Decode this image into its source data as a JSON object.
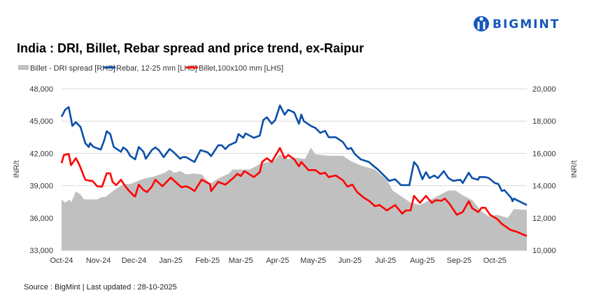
{
  "logo": {
    "text": "BIGMINT",
    "color": "#1557b8"
  },
  "source": "Source : BigMint | Last updated : 28-10-2025",
  "chart_data": {
    "type": "line",
    "title": "India : DRI, Billet, Rebar spread and price trend, ex-Raipur",
    "ylabel_left": "INR/t",
    "ylabel_right": "INR/t",
    "ylim_left": [
      33000,
      48000
    ],
    "ylim_right": [
      10000,
      20000
    ],
    "yticks_left": [
      "33,000",
      "36,000",
      "39,000",
      "42,000",
      "45,000",
      "48,000"
    ],
    "yticks_right": [
      "10,000",
      "12,000",
      "14,000",
      "16,000",
      "18,000",
      "20,000"
    ],
    "xlim": [
      "2024-10-01",
      "2025-10-28"
    ],
    "xticks": [
      "Oct-24",
      "Nov-24",
      "Dec-24",
      "Jan-25",
      "Feb-25",
      "Mar-25",
      "Apr-25",
      "May-25",
      "Jun-25",
      "Jul-25",
      "Aug-25",
      "Sep-25",
      "Oct-25"
    ],
    "grid": "horizontal",
    "legend_position": "top",
    "series": [
      {
        "name": "Billet - DRI spread  [RHS]",
        "type": "area",
        "axis": "right",
        "color": "#c0c0c0",
        "points": [
          [
            "2024-10-01",
            13150
          ],
          [
            "2024-10-04",
            12950
          ],
          [
            "2024-10-08",
            13150
          ],
          [
            "2024-10-09",
            12950
          ],
          [
            "2024-10-13",
            13650
          ],
          [
            "2024-10-17",
            13450
          ],
          [
            "2024-10-20",
            13150
          ],
          [
            "2024-10-31",
            13150
          ],
          [
            "2024-11-04",
            13300
          ],
          [
            "2024-11-07",
            13300
          ],
          [
            "2024-11-14",
            13700
          ],
          [
            "2024-11-22",
            14100
          ],
          [
            "2024-11-28",
            14100
          ],
          [
            "2024-12-06",
            14350
          ],
          [
            "2024-12-10",
            14450
          ],
          [
            "2024-12-17",
            14550
          ],
          [
            "2024-12-27",
            14800
          ],
          [
            "2024-12-31",
            15000
          ],
          [
            "2025-01-04",
            14800
          ],
          [
            "2025-01-09",
            14900
          ],
          [
            "2025-01-14",
            14700
          ],
          [
            "2025-01-21",
            14750
          ],
          [
            "2025-01-27",
            14700
          ],
          [
            "2025-02-03",
            14100
          ],
          [
            "2025-02-10",
            14450
          ],
          [
            "2025-02-19",
            14750
          ],
          [
            "2025-02-22",
            15000
          ],
          [
            "2025-03-02",
            15000
          ],
          [
            "2025-03-08",
            15000
          ],
          [
            "2025-03-14",
            15200
          ],
          [
            "2025-03-17",
            15350
          ],
          [
            "2025-03-23",
            15450
          ],
          [
            "2025-03-29",
            15550
          ],
          [
            "2025-04-03",
            15950
          ],
          [
            "2025-04-10",
            15650
          ],
          [
            "2025-04-15",
            15750
          ],
          [
            "2025-04-24",
            15650
          ],
          [
            "2025-04-29",
            16350
          ],
          [
            "2025-05-03",
            15950
          ],
          [
            "2025-05-14",
            15850
          ],
          [
            "2025-05-26",
            15850
          ],
          [
            "2025-06-01",
            15550
          ],
          [
            "2025-06-10",
            15250
          ],
          [
            "2025-06-22",
            15000
          ],
          [
            "2025-07-02",
            14350
          ],
          [
            "2025-07-07",
            13700
          ],
          [
            "2025-07-16",
            13250
          ],
          [
            "2025-07-22",
            12950
          ],
          [
            "2025-07-30",
            12800
          ],
          [
            "2025-08-11",
            13250
          ],
          [
            "2025-08-23",
            13700
          ],
          [
            "2025-08-29",
            13700
          ],
          [
            "2025-09-04",
            13400
          ],
          [
            "2025-09-12",
            13100
          ],
          [
            "2025-09-20",
            12400
          ],
          [
            "2025-09-26",
            12100
          ],
          [
            "2025-10-03",
            12200
          ],
          [
            "2025-10-12",
            12000
          ],
          [
            "2025-10-17",
            12550
          ],
          [
            "2025-10-28",
            12500
          ]
        ]
      },
      {
        "name": "Rebar, 12-25 mm [LHS]",
        "type": "line",
        "axis": "left",
        "color": "#0a4fa8",
        "points": [
          [
            "2024-10-01",
            45400
          ],
          [
            "2024-10-04",
            46050
          ],
          [
            "2024-10-07",
            46300
          ],
          [
            "2024-10-09",
            45200
          ],
          [
            "2024-10-10",
            44550
          ],
          [
            "2024-10-13",
            44900
          ],
          [
            "2024-10-17",
            44450
          ],
          [
            "2024-10-21",
            42950
          ],
          [
            "2024-10-24",
            42600
          ],
          [
            "2024-10-25",
            42950
          ],
          [
            "2024-10-28",
            42600
          ],
          [
            "2024-11-03",
            42350
          ],
          [
            "2024-11-06",
            43250
          ],
          [
            "2024-11-08",
            44050
          ],
          [
            "2024-11-11",
            43800
          ],
          [
            "2024-11-14",
            42600
          ],
          [
            "2024-11-20",
            42150
          ],
          [
            "2024-11-22",
            42550
          ],
          [
            "2024-11-25",
            42300
          ],
          [
            "2024-11-28",
            41750
          ],
          [
            "2024-12-02",
            41450
          ],
          [
            "2024-12-05",
            42600
          ],
          [
            "2024-12-09",
            42150
          ],
          [
            "2024-12-11",
            41500
          ],
          [
            "2024-12-16",
            42300
          ],
          [
            "2024-12-19",
            42550
          ],
          [
            "2024-12-22",
            42300
          ],
          [
            "2024-12-26",
            41650
          ],
          [
            "2024-12-31",
            42400
          ],
          [
            "2025-01-03",
            42150
          ],
          [
            "2025-01-09",
            41500
          ],
          [
            "2025-01-11",
            41650
          ],
          [
            "2025-01-14",
            41650
          ],
          [
            "2025-01-17",
            41450
          ],
          [
            "2025-01-21",
            41200
          ],
          [
            "2025-01-26",
            42300
          ],
          [
            "2025-02-01",
            42100
          ],
          [
            "2025-02-04",
            41750
          ],
          [
            "2025-02-10",
            42750
          ],
          [
            "2025-02-13",
            42750
          ],
          [
            "2025-02-16",
            42400
          ],
          [
            "2025-02-19",
            42750
          ],
          [
            "2025-02-25",
            43050
          ],
          [
            "2025-02-27",
            43800
          ],
          [
            "2025-03-03",
            43450
          ],
          [
            "2025-03-05",
            43850
          ],
          [
            "2025-03-12",
            43450
          ],
          [
            "2025-03-17",
            43650
          ],
          [
            "2025-03-20",
            45100
          ],
          [
            "2025-03-23",
            45350
          ],
          [
            "2025-03-27",
            44750
          ],
          [
            "2025-03-30",
            45100
          ],
          [
            "2025-04-03",
            46450
          ],
          [
            "2025-04-07",
            45600
          ],
          [
            "2025-04-10",
            46050
          ],
          [
            "2025-04-15",
            45800
          ],
          [
            "2025-04-19",
            44750
          ],
          [
            "2025-04-21",
            45600
          ],
          [
            "2025-04-23",
            45000
          ],
          [
            "2025-04-29",
            44550
          ],
          [
            "2025-05-03",
            44350
          ],
          [
            "2025-05-07",
            43900
          ],
          [
            "2025-05-11",
            44100
          ],
          [
            "2025-05-14",
            43500
          ],
          [
            "2025-05-20",
            43500
          ],
          [
            "2025-05-26",
            43050
          ],
          [
            "2025-05-30",
            42400
          ],
          [
            "2025-06-02",
            42500
          ],
          [
            "2025-06-05",
            41950
          ],
          [
            "2025-06-10",
            41450
          ],
          [
            "2025-06-17",
            41200
          ],
          [
            "2025-06-20",
            40900
          ],
          [
            "2025-06-24",
            40550
          ],
          [
            "2025-07-01",
            39800
          ],
          [
            "2025-07-04",
            39450
          ],
          [
            "2025-07-09",
            39600
          ],
          [
            "2025-07-14",
            39050
          ],
          [
            "2025-07-21",
            39050
          ],
          [
            "2025-07-25",
            41200
          ],
          [
            "2025-07-28",
            40800
          ],
          [
            "2025-08-01",
            39600
          ],
          [
            "2025-08-04",
            40250
          ],
          [
            "2025-08-07",
            39700
          ],
          [
            "2025-08-11",
            39950
          ],
          [
            "2025-08-14",
            39700
          ],
          [
            "2025-08-19",
            40350
          ],
          [
            "2025-08-23",
            39700
          ],
          [
            "2025-08-27",
            39450
          ],
          [
            "2025-09-02",
            39550
          ],
          [
            "2025-09-04",
            39250
          ],
          [
            "2025-09-09",
            40200
          ],
          [
            "2025-09-12",
            39700
          ],
          [
            "2025-09-17",
            39550
          ],
          [
            "2025-09-18",
            39800
          ],
          [
            "2025-09-23",
            39800
          ],
          [
            "2025-09-26",
            39700
          ],
          [
            "2025-10-01",
            39250
          ],
          [
            "2025-10-04",
            39150
          ],
          [
            "2025-10-07",
            38500
          ],
          [
            "2025-10-09",
            38600
          ],
          [
            "2025-10-15",
            37850
          ],
          [
            "2025-10-16",
            37550
          ],
          [
            "2025-10-17",
            37800
          ],
          [
            "2025-10-28",
            37200
          ]
        ]
      },
      {
        "name": "Billet,100x100 mm [LHS]",
        "type": "line",
        "axis": "left",
        "color": "#ff0000",
        "points": [
          [
            "2024-10-01",
            41100
          ],
          [
            "2024-10-03",
            41850
          ],
          [
            "2024-10-07",
            41950
          ],
          [
            "2024-10-09",
            40900
          ],
          [
            "2024-10-13",
            41550
          ],
          [
            "2024-10-16",
            40950
          ],
          [
            "2024-10-21",
            39550
          ],
          [
            "2024-10-25",
            39450
          ],
          [
            "2024-10-27",
            39450
          ],
          [
            "2024-10-31",
            38950
          ],
          [
            "2024-11-04",
            38900
          ],
          [
            "2024-11-06",
            39500
          ],
          [
            "2024-11-08",
            40150
          ],
          [
            "2024-11-11",
            40150
          ],
          [
            "2024-11-13",
            39350
          ],
          [
            "2024-11-16",
            39050
          ],
          [
            "2024-11-20",
            39550
          ],
          [
            "2024-11-24",
            38900
          ],
          [
            "2024-11-27",
            38500
          ],
          [
            "2024-12-01",
            38050
          ],
          [
            "2024-12-02",
            38000
          ],
          [
            "2024-12-05",
            39100
          ],
          [
            "2024-12-09",
            38600
          ],
          [
            "2024-12-12",
            38400
          ],
          [
            "2024-12-16",
            38900
          ],
          [
            "2024-12-19",
            39550
          ],
          [
            "2024-12-25",
            38950
          ],
          [
            "2025-01-01",
            39750
          ],
          [
            "2025-01-06",
            39250
          ],
          [
            "2025-01-10",
            38850
          ],
          [
            "2025-01-14",
            38950
          ],
          [
            "2025-01-17",
            38800
          ],
          [
            "2025-01-21",
            38500
          ],
          [
            "2025-01-27",
            39550
          ],
          [
            "2025-02-03",
            39150
          ],
          [
            "2025-02-04",
            38500
          ],
          [
            "2025-02-10",
            39350
          ],
          [
            "2025-02-16",
            39100
          ],
          [
            "2025-02-23",
            39750
          ],
          [
            "2025-02-26",
            40100
          ],
          [
            "2025-03-01",
            39900
          ],
          [
            "2025-03-04",
            40350
          ],
          [
            "2025-03-07",
            40150
          ],
          [
            "2025-03-12",
            39800
          ],
          [
            "2025-03-17",
            40250
          ],
          [
            "2025-03-19",
            41200
          ],
          [
            "2025-03-23",
            41550
          ],
          [
            "2025-03-27",
            41200
          ],
          [
            "2025-04-03",
            42500
          ],
          [
            "2025-04-07",
            41550
          ],
          [
            "2025-04-10",
            41850
          ],
          [
            "2025-04-15",
            41450
          ],
          [
            "2025-04-19",
            40800
          ],
          [
            "2025-04-21",
            41200
          ],
          [
            "2025-04-27",
            40450
          ],
          [
            "2025-05-03",
            40450
          ],
          [
            "2025-05-07",
            40100
          ],
          [
            "2025-05-11",
            40200
          ],
          [
            "2025-05-14",
            39800
          ],
          [
            "2025-05-20",
            39950
          ],
          [
            "2025-05-26",
            39500
          ],
          [
            "2025-05-30",
            38900
          ],
          [
            "2025-06-03",
            39100
          ],
          [
            "2025-06-07",
            38400
          ],
          [
            "2025-06-13",
            37850
          ],
          [
            "2025-06-17",
            37600
          ],
          [
            "2025-06-22",
            37100
          ],
          [
            "2025-06-26",
            37200
          ],
          [
            "2025-07-02",
            36700
          ],
          [
            "2025-07-09",
            37200
          ],
          [
            "2025-07-15",
            36400
          ],
          [
            "2025-07-18",
            36700
          ],
          [
            "2025-07-22",
            36700
          ],
          [
            "2025-07-25",
            38050
          ],
          [
            "2025-07-30",
            37400
          ],
          [
            "2025-08-04",
            38050
          ],
          [
            "2025-08-09",
            37400
          ],
          [
            "2025-08-12",
            37650
          ],
          [
            "2025-08-17",
            37600
          ],
          [
            "2025-08-20",
            37800
          ],
          [
            "2025-08-24",
            37300
          ],
          [
            "2025-08-30",
            36300
          ],
          [
            "2025-09-04",
            36550
          ],
          [
            "2025-09-09",
            37550
          ],
          [
            "2025-09-12",
            36900
          ],
          [
            "2025-09-17",
            36550
          ],
          [
            "2025-09-20",
            36950
          ],
          [
            "2025-09-23",
            36950
          ],
          [
            "2025-09-27",
            36300
          ],
          [
            "2025-10-03",
            35900
          ],
          [
            "2025-10-07",
            35450
          ],
          [
            "2025-10-14",
            34900
          ],
          [
            "2025-10-20",
            34700
          ],
          [
            "2025-10-26",
            34400
          ],
          [
            "2025-10-28",
            34350
          ]
        ]
      }
    ]
  }
}
